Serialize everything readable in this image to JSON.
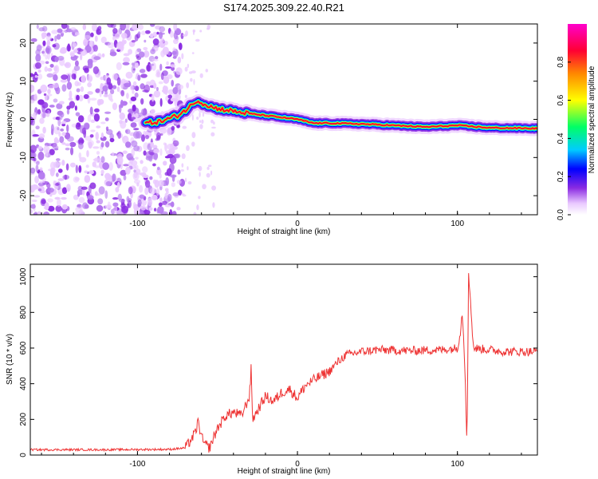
{
  "title": "S174.2025.309.22.40.R21",
  "chart_data": [
    {
      "type": "heatmap",
      "xlabel": "Height of straight line (km)",
      "ylabel": "Frequency (Hz)",
      "xlim": [
        -167,
        150
      ],
      "ylim": [
        -25,
        25
      ],
      "xticks": [
        -100,
        0,
        100
      ],
      "yticks": [
        -20,
        -10,
        0,
        10,
        20
      ],
      "colorbar": {
        "label": "Normalized spectral amplitude",
        "ticks": [
          0.0,
          0.2,
          0.4,
          0.6,
          0.8
        ],
        "range": [
          0,
          1
        ],
        "colormap": [
          "#ffffff",
          "#e9c8ff",
          "#8a2be2",
          "#0000ff",
          "#00ccff",
          "#00ff66",
          "#ffff00",
          "#ff8800",
          "#ff0033",
          "#ff00cc"
        ]
      },
      "ridge": {
        "x": [
          -95,
          -85,
          -75,
          -68,
          -63,
          -58,
          -52,
          -45,
          -38,
          -30,
          -20,
          -10,
          0,
          10,
          20,
          40,
          60,
          80,
          100,
          120,
          150
        ],
        "y": [
          -1,
          -0.5,
          1,
          3,
          5,
          4,
          3,
          2.5,
          2,
          1.5,
          1,
          0.5,
          0,
          -1,
          -1,
          -1.2,
          -1.6,
          -2,
          -1.6,
          -2.2,
          -2.4
        ]
      }
    },
    {
      "type": "line",
      "xlabel": "Height of straight line (km)",
      "ylabel": "SNR (10 * v/v)",
      "xlim": [
        -167,
        150
      ],
      "ylim": [
        0,
        1070
      ],
      "xticks": [
        -100,
        0,
        100
      ],
      "yticks": [
        0,
        200,
        400,
        600,
        800,
        1000
      ],
      "series": [
        {
          "name": "SNR",
          "color": "#ee3333",
          "x": [
            -167,
            -120,
            -80,
            -70,
            -64,
            -62,
            -60,
            -58,
            -55,
            -50,
            -45,
            -40,
            -35,
            -30,
            -29,
            -28,
            -25,
            -20,
            -15,
            -10,
            -5,
            0,
            5,
            10,
            20,
            25,
            30,
            40,
            50,
            70,
            90,
            100,
            102,
            103,
            104,
            105,
            106,
            107,
            108,
            110,
            130,
            150
          ],
          "values": [
            30,
            30,
            32,
            40,
            120,
            190,
            100,
            60,
            40,
            150,
            220,
            240,
            220,
            330,
            480,
            200,
            250,
            330,
            300,
            350,
            370,
            320,
            390,
            420,
            470,
            520,
            560,
            580,
            590,
            585,
            590,
            600,
            700,
            800,
            650,
            400,
            60,
            1000,
            900,
            600,
            580,
            580
          ]
        }
      ]
    }
  ]
}
